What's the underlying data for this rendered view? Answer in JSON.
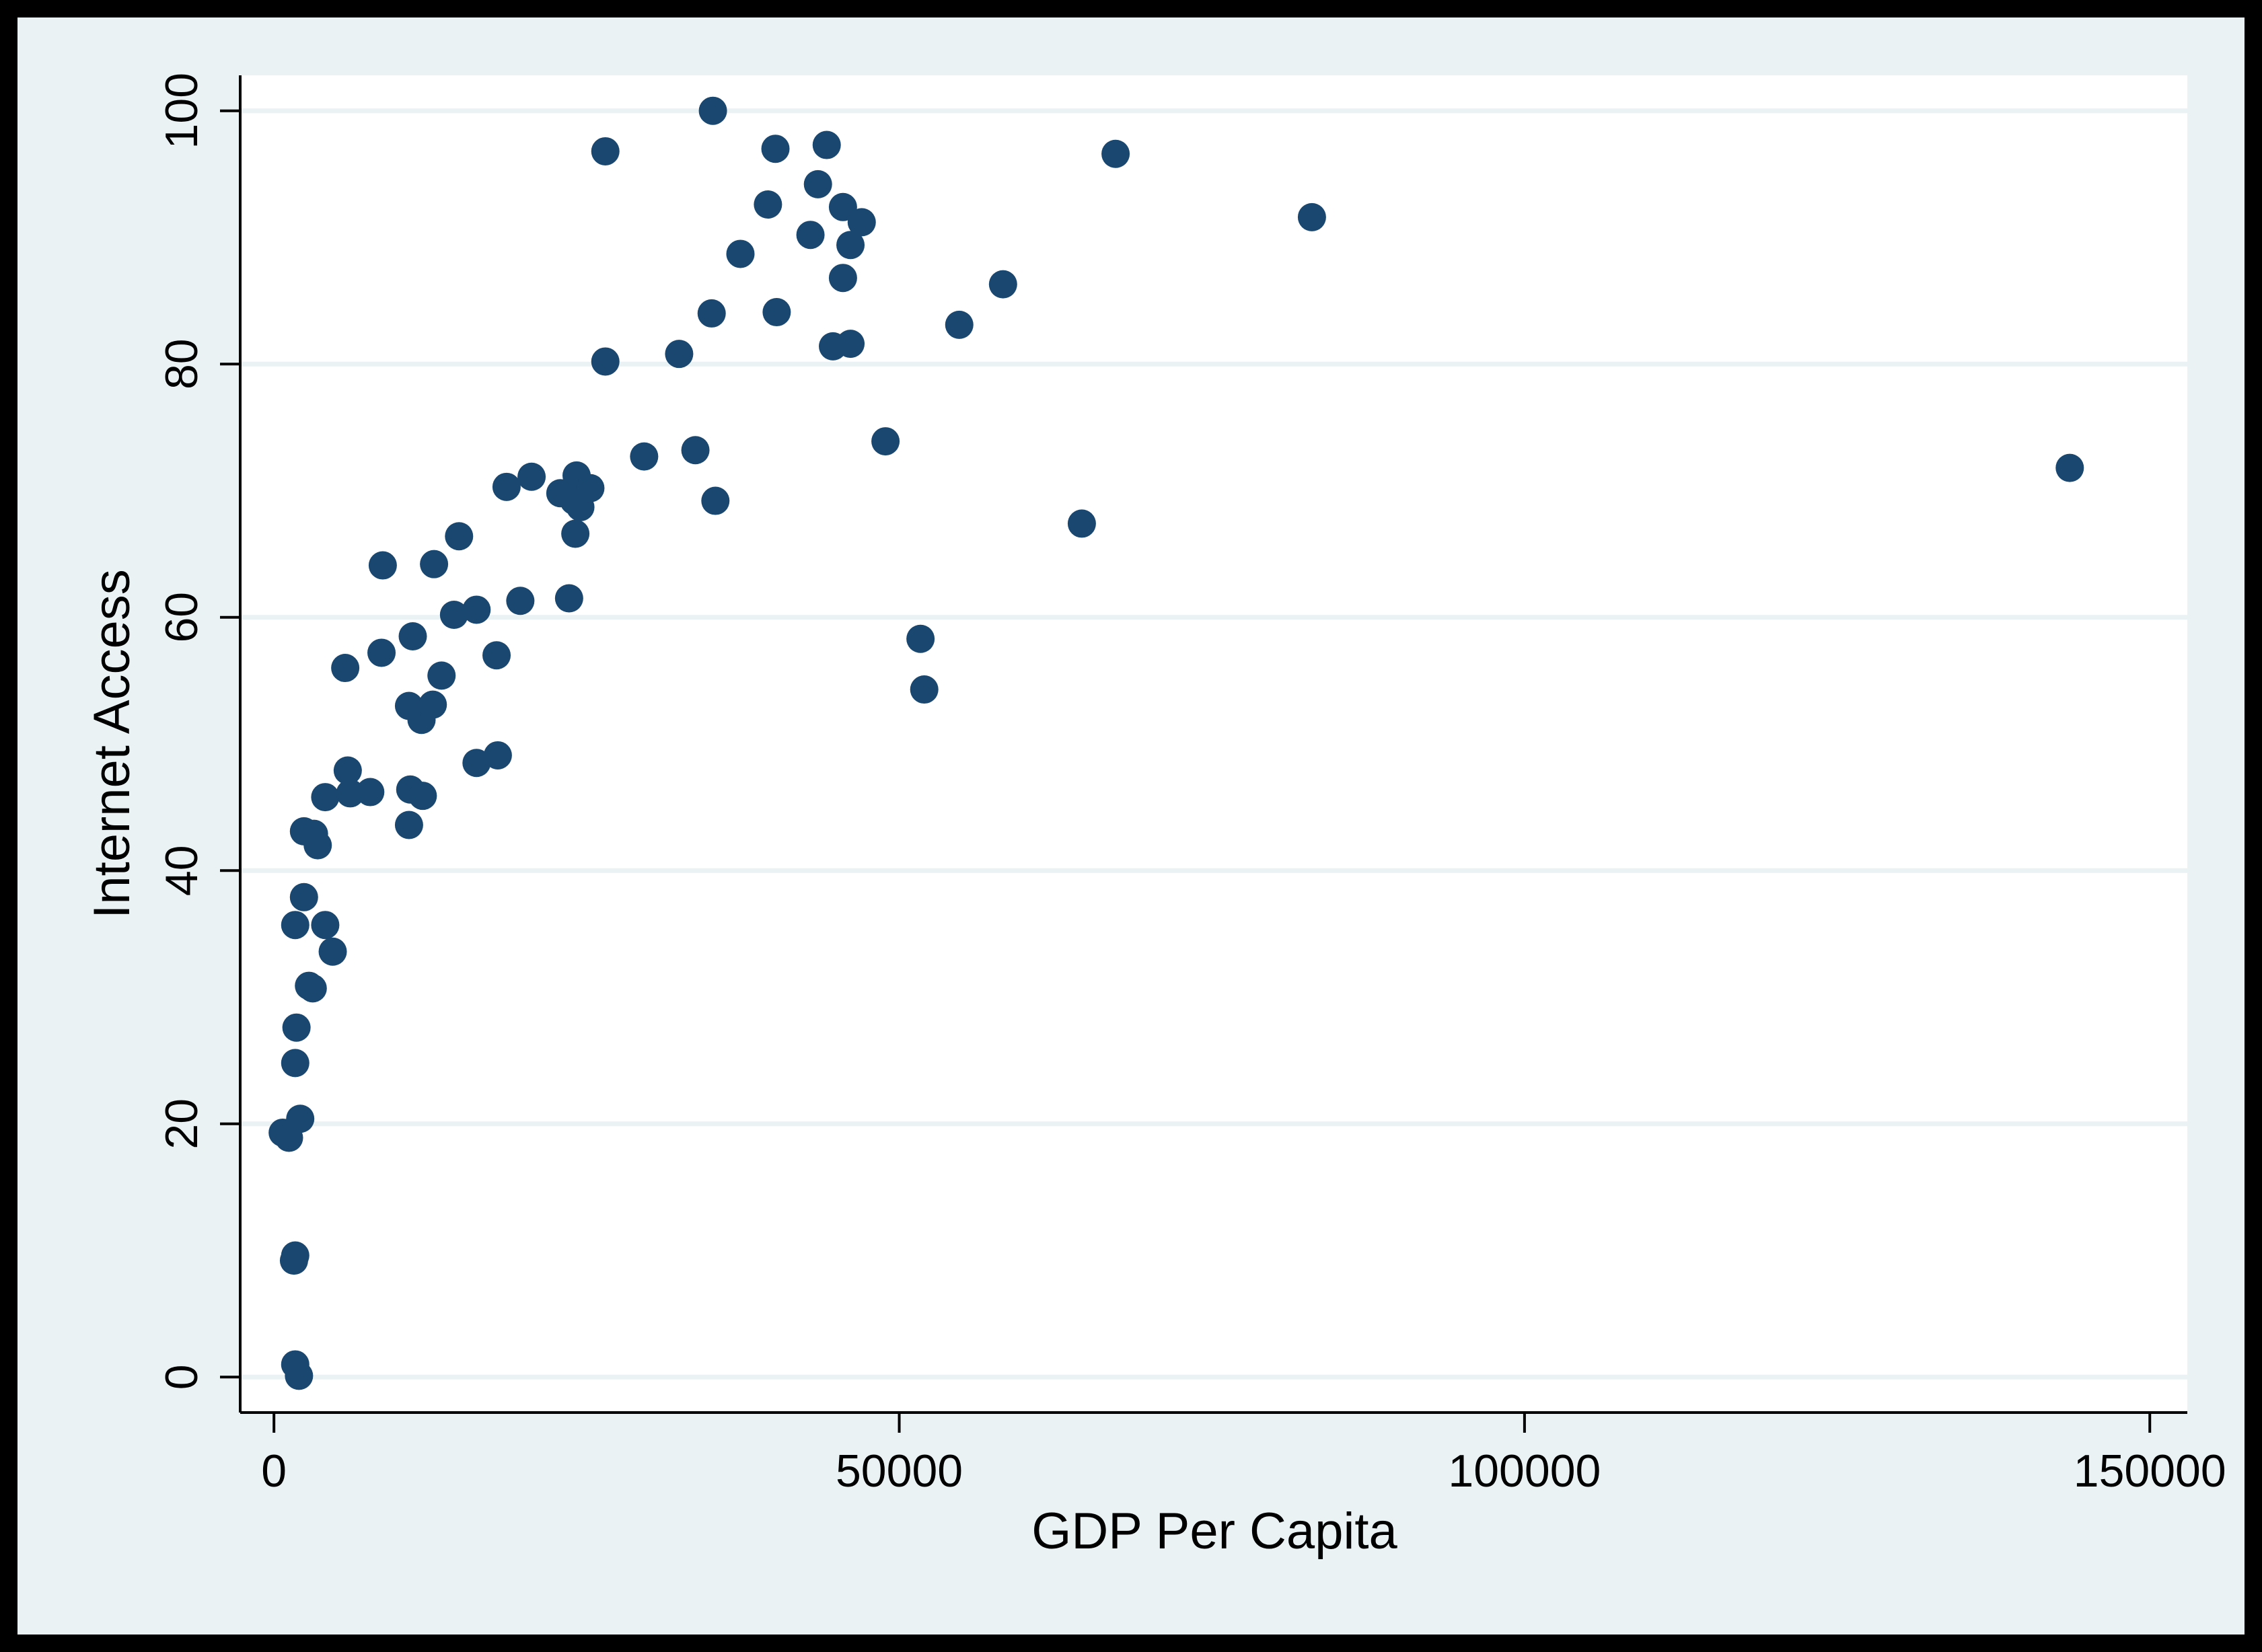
{
  "chart_data": {
    "type": "scatter",
    "title": "",
    "xlabel": "GDP Per Capita",
    "ylabel": "Internet Access",
    "xlim": [
      -2700,
      153000
    ],
    "ylim": [
      -2.8,
      102.8
    ],
    "xticks": [
      0,
      50000,
      100000,
      150000
    ],
    "yticks": [
      0,
      20,
      40,
      60,
      80,
      100
    ],
    "grid": true,
    "legend": "none",
    "colors": {
      "outer_background": "#eaf2f3",
      "plot_background": "#ffffff",
      "gridline": "#eaf2f3",
      "marker": "#1a476f",
      "frame": "#000000"
    },
    "points": [
      {
        "x": 700,
        "y": 19.3
      },
      {
        "x": 1200,
        "y": 18.9
      },
      {
        "x": 2100,
        "y": 20.4
      },
      {
        "x": 1700,
        "y": 24.8
      },
      {
        "x": 1800,
        "y": 27.6
      },
      {
        "x": 2800,
        "y": 30.9
      },
      {
        "x": 3100,
        "y": 30.7
      },
      {
        "x": 1700,
        "y": 35.7
      },
      {
        "x": 2400,
        "y": 37.9
      },
      {
        "x": 4100,
        "y": 35.7
      },
      {
        "x": 4700,
        "y": 33.6
      },
      {
        "x": 2400,
        "y": 43.1
      },
      {
        "x": 3200,
        "y": 42.9
      },
      {
        "x": 3500,
        "y": 42.0
      },
      {
        "x": 4100,
        "y": 45.8
      },
      {
        "x": 1600,
        "y": 9.2
      },
      {
        "x": 1700,
        "y": 9.6
      },
      {
        "x": 1700,
        "y": 1.0
      },
      {
        "x": 2000,
        "y": 0.1
      },
      {
        "x": 5700,
        "y": 56.0
      },
      {
        "x": 5900,
        "y": 47.9
      },
      {
        "x": 6100,
        "y": 46.1
      },
      {
        "x": 7700,
        "y": 46.2
      },
      {
        "x": 8700,
        "y": 64.1
      },
      {
        "x": 8600,
        "y": 57.2
      },
      {
        "x": 10900,
        "y": 46.4
      },
      {
        "x": 10800,
        "y": 43.6
      },
      {
        "x": 11900,
        "y": 45.9
      },
      {
        "x": 10800,
        "y": 53.0
      },
      {
        "x": 11800,
        "y": 51.9
      },
      {
        "x": 11100,
        "y": 58.5
      },
      {
        "x": 12700,
        "y": 53.1
      },
      {
        "x": 13400,
        "y": 55.4
      },
      {
        "x": 12800,
        "y": 64.2
      },
      {
        "x": 14400,
        "y": 60.2
      },
      {
        "x": 14800,
        "y": 66.4
      },
      {
        "x": 16200,
        "y": 60.6
      },
      {
        "x": 16200,
        "y": 48.5
      },
      {
        "x": 17900,
        "y": 49.1
      },
      {
        "x": 17800,
        "y": 57.0
      },
      {
        "x": 18600,
        "y": 70.3
      },
      {
        "x": 19700,
        "y": 61.3
      },
      {
        "x": 20600,
        "y": 71.1
      },
      {
        "x": 22900,
        "y": 69.8
      },
      {
        "x": 23600,
        "y": 61.5
      },
      {
        "x": 24100,
        "y": 66.6
      },
      {
        "x": 24000,
        "y": 69.2
      },
      {
        "x": 24200,
        "y": 71.2
      },
      {
        "x": 24500,
        "y": 68.7
      },
      {
        "x": 25300,
        "y": 70.2
      },
      {
        "x": 26500,
        "y": 80.2
      },
      {
        "x": 26500,
        "y": 96.8
      },
      {
        "x": 29600,
        "y": 72.7
      },
      {
        "x": 32400,
        "y": 80.8
      },
      {
        "x": 33700,
        "y": 73.2
      },
      {
        "x": 35000,
        "y": 84.0
      },
      {
        "x": 35100,
        "y": 100.0
      },
      {
        "x": 35300,
        "y": 69.2
      },
      {
        "x": 37300,
        "y": 88.7
      },
      {
        "x": 39500,
        "y": 92.6
      },
      {
        "x": 40100,
        "y": 97.0
      },
      {
        "x": 40200,
        "y": 84.1
      },
      {
        "x": 42900,
        "y": 90.2
      },
      {
        "x": 43500,
        "y": 94.2
      },
      {
        "x": 44200,
        "y": 97.3
      },
      {
        "x": 44700,
        "y": 81.4
      },
      {
        "x": 45500,
        "y": 92.4
      },
      {
        "x": 45500,
        "y": 86.8
      },
      {
        "x": 46100,
        "y": 81.6
      },
      {
        "x": 46100,
        "y": 89.4
      },
      {
        "x": 47000,
        "y": 91.2
      },
      {
        "x": 48900,
        "y": 73.9
      },
      {
        "x": 51700,
        "y": 58.3
      },
      {
        "x": 52000,
        "y": 54.3
      },
      {
        "x": 54800,
        "y": 83.1
      },
      {
        "x": 58300,
        "y": 86.3
      },
      {
        "x": 64600,
        "y": 67.4
      },
      {
        "x": 67300,
        "y": 96.6
      },
      {
        "x": 83000,
        "y": 91.6
      },
      {
        "x": 143600,
        "y": 71.8
      }
    ]
  }
}
